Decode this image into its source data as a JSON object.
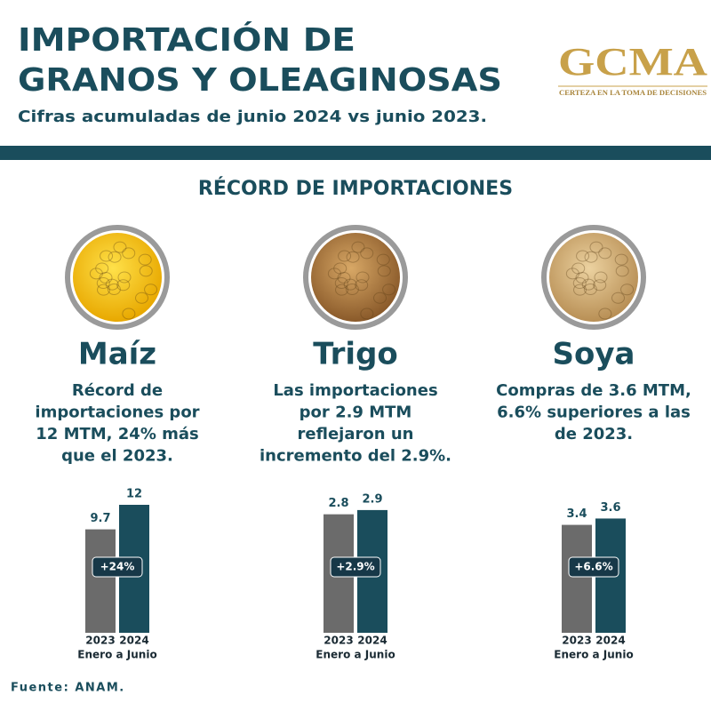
{
  "header": {
    "title_lines": [
      "IMPORTACIÓN DE",
      "GRANOS Y OLEAGINOSAS"
    ],
    "subtitle": "Cifras acumuladas de junio 2024 vs junio 2023."
  },
  "logo": {
    "name": "GCMA",
    "tagline": "CERTEZA EN LA TOMA DE DECISIONES"
  },
  "section_title": "RÉCORD DE IMPORTACIONES",
  "products": [
    {
      "name": "Maíz",
      "description": [
        "Récord de",
        "importaciones por",
        "12 MTM, 24% más",
        "que el 2023."
      ]
    },
    {
      "name": "Trigo",
      "description": [
        "Las importaciones",
        "por 2.9 MTM",
        "reflejaron un",
        "incremento del 2.9%."
      ]
    },
    {
      "name": "Soya",
      "description": [
        "Compras de 3.6 MTM,",
        "6.6% superiores a las",
        "de 2023."
      ]
    }
  ],
  "chart_data": [
    {
      "type": "bar",
      "categories": [
        "2023",
        "2024"
      ],
      "values": [
        9.7,
        12
      ],
      "colors": [
        "#6b6b6b",
        "#1a4d5c"
      ],
      "ylim": [
        0,
        12.5
      ],
      "x_label": "Enero a Junio",
      "annotation": "+24%"
    },
    {
      "type": "bar",
      "categories": [
        "2023",
        "2024"
      ],
      "values": [
        2.8,
        2.9
      ],
      "colors": [
        "#6b6b6b",
        "#1a4d5c"
      ],
      "ylim": [
        0,
        3.15
      ],
      "x_label": "Enero a Junio",
      "annotation": "+2.9%"
    },
    {
      "type": "bar",
      "categories": [
        "2023",
        "2024"
      ],
      "values": [
        3.4,
        3.6
      ],
      "colors": [
        "#6b6b6b",
        "#1a4d5c"
      ],
      "ylim": [
        0,
        4.2
      ],
      "x_label": "Enero a Junio",
      "annotation": "+6.6%"
    }
  ],
  "source": "Fuente: ANAM."
}
